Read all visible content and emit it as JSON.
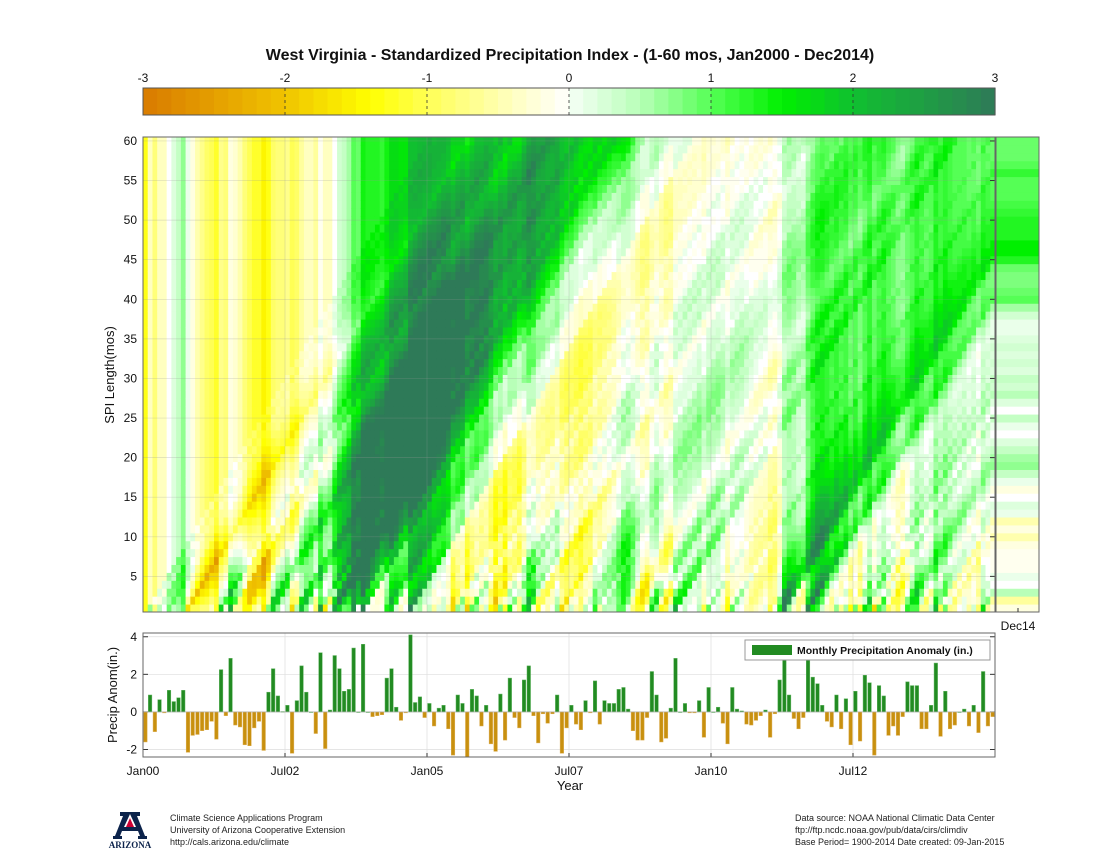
{
  "chart_data": [
    {
      "type": "heatmap",
      "title": "West Virginia - Standardized Precipitation Index - (1-60 mos, Jan2000 - Dec2014)",
      "ylabel": "SPI Length(mos)",
      "ylim": [
        1,
        60
      ],
      "yticks": [
        5,
        10,
        15,
        20,
        25,
        30,
        35,
        40,
        45,
        50,
        55,
        60
      ],
      "colorbar": {
        "ticks": [
          "-3",
          "-2",
          "-1",
          "0",
          "1",
          "2",
          "3"
        ],
        "range": [
          -3,
          3
        ],
        "stops": [
          {
            "v": -3,
            "color": "#d97a00"
          },
          {
            "v": -2,
            "color": "#f0c400"
          },
          {
            "v": -1.4,
            "color": "#ffff00"
          },
          {
            "v": -1,
            "color": "#ffff55"
          },
          {
            "v": -0.4,
            "color": "#ffffc0"
          },
          {
            "v": 0,
            "color": "#ffffff"
          },
          {
            "v": 0.05,
            "color": "#f0fff0"
          },
          {
            "v": 0.5,
            "color": "#b8ffb8"
          },
          {
            "v": 1,
            "color": "#55ff55"
          },
          {
            "v": 1.5,
            "color": "#00f000"
          },
          {
            "v": 2,
            "color": "#10c030"
          },
          {
            "v": 3,
            "color": "#2e7a58"
          }
        ]
      },
      "current_label": "Dec14"
    },
    {
      "type": "bar",
      "ylabel": "Precip Anom(in.)",
      "xlabel": "Year",
      "ylim": [
        -2.4,
        4.2
      ],
      "yticks": [
        -2,
        0,
        2,
        4
      ],
      "xticks": [
        {
          "label": "Jan00",
          "month": 0
        },
        {
          "label": "Jul02",
          "month": 30
        },
        {
          "label": "Jan05",
          "month": 60
        },
        {
          "label": "Jul07",
          "month": 90
        },
        {
          "label": "Jan10",
          "month": 120
        },
        {
          "label": "Jul12",
          "month": 150
        }
      ],
      "legend": {
        "label": "Monthly Precipitation Anomaly (in.)",
        "position": "top-right"
      },
      "pos_color": "#228b22",
      "neg_color": "#c8900f",
      "monthly_anomaly": [
        -1.6,
        0.9,
        -1.05,
        0.65,
        -0.05,
        1.15,
        0.55,
        0.75,
        1.15,
        -2.15,
        -1.25,
        -1.2,
        -1.0,
        -0.95,
        -0.5,
        -1.45,
        2.25,
        -0.2,
        2.85,
        -0.7,
        -0.8,
        -1.75,
        -1.8,
        -0.85,
        -0.5,
        -2.05,
        1.05,
        2.3,
        0.85,
        0.02,
        0.35,
        -2.2,
        0.6,
        2.45,
        1.05,
        0.0,
        -1.15,
        3.15,
        -1.95,
        0.1,
        3.0,
        2.3,
        1.1,
        1.2,
        3.4,
        0.0,
        3.6,
        0.0,
        -0.25,
        -0.2,
        -0.15,
        1.8,
        2.3,
        0.25,
        -0.45,
        -0.05,
        4.1,
        0.5,
        0.8,
        -0.3,
        0.45,
        -0.75,
        0.2,
        0.35,
        -0.9,
        -2.3,
        0.9,
        0.45,
        -2.4,
        1.2,
        0.85,
        -0.75,
        0.35,
        -1.7,
        -2.1,
        0.95,
        -1.5,
        1.8,
        -0.3,
        -0.85,
        1.7,
        2.45,
        -0.2,
        -1.65,
        -0.1,
        -0.6,
        -0.1,
        0.9,
        -2.2,
        -0.85,
        0.35,
        -0.65,
        -0.95,
        0.6,
        -0.05,
        1.65,
        -0.65,
        0.6,
        0.45,
        0.45,
        1.2,
        1.3,
        0.15,
        -1.0,
        -1.5,
        -1.5,
        -0.3,
        2.15,
        0.9,
        -1.6,
        -1.4,
        0.2,
        2.85,
        0.0,
        0.45,
        -0.05,
        -0.05,
        0.6,
        -1.35,
        1.3,
        0.0,
        0.25,
        -0.6,
        -1.7,
        1.3,
        0.15,
        0.05,
        -0.65,
        -0.7,
        -0.45,
        -0.2,
        0.1,
        -1.35,
        -0.1,
        1.7,
        3.8,
        0.9,
        -0.35,
        -0.9,
        -0.3,
        3.5,
        1.85,
        1.5,
        0.35,
        -0.5,
        -0.8,
        0.9,
        -0.9,
        0.7,
        -1.75,
        1.1,
        -1.55,
        1.95,
        1.55,
        -2.3,
        1.4,
        0.85,
        -1.25,
        -0.75,
        -1.25,
        -0.25,
        1.6,
        1.4,
        1.4,
        -0.9,
        -0.9,
        0.35,
        2.6,
        -1.3,
        1.1,
        -0.9,
        -0.7,
        0.0,
        0.15,
        -0.75,
        0.35,
        -1.1,
        2.15,
        -0.75,
        -0.25
      ]
    }
  ],
  "footer": {
    "left": [
      "Climate Science Applications Program",
      "University of Arizona Cooperative Extension",
      "http://cals.arizona.edu/climate"
    ],
    "right": [
      "Data source: NOAA National Climatic Data Center",
      "ftp://ftp.ncdc.noaa.gov/pub/data/cirs/climdiv",
      "Base Period= 1900-2014 Date created: 09-Jan-2015"
    ],
    "logo_text": "ARIZONA"
  }
}
